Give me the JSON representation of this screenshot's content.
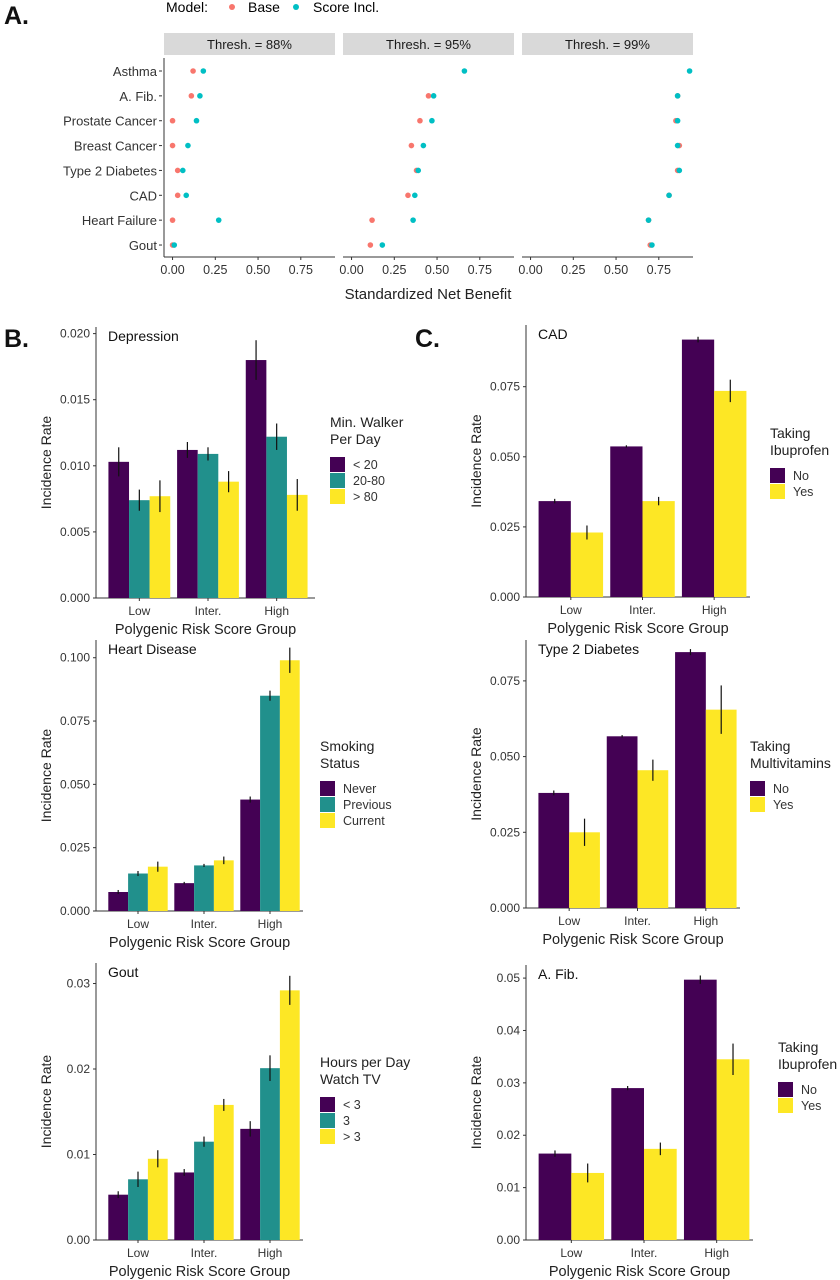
{
  "panel_letters": [
    "A.",
    "B.",
    "C."
  ],
  "colors": {
    "base": "#F8766D",
    "score": "#00BFC4",
    "purple": "#440154",
    "teal": "#21908C",
    "yellow": "#FDE725",
    "strip": "#D9D9D9",
    "axis": "#4D4D4D"
  },
  "chart_data": [
    {
      "id": "A",
      "type": "scatter",
      "legend_title": "Model:",
      "series_names": [
        "Base",
        "Score Incl."
      ],
      "xlabel": "Standardized Net Benefit",
      "categories": [
        "Asthma",
        "A. Fib.",
        "Prostate Cancer",
        "Breast Cancer",
        "Type 2 Diabetes",
        "CAD",
        "Heart Failure",
        "Gout"
      ],
      "xticks": [
        "0.00",
        "0.25",
        "0.50",
        "0.75"
      ],
      "xlim": [
        -0.05,
        0.95
      ],
      "facets": [
        {
          "label": "Thresh. = 88%",
          "base": [
            0.12,
            0.11,
            0.0,
            0.0,
            0.03,
            0.03,
            0.0,
            0.0
          ],
          "score": [
            0.18,
            0.16,
            0.14,
            0.09,
            0.06,
            0.08,
            0.27,
            0.01
          ]
        },
        {
          "label": "Thresh. = 95%",
          "base": [
            null,
            0.45,
            0.4,
            0.35,
            0.38,
            0.33,
            0.12,
            0.11
          ],
          "score": [
            0.66,
            0.48,
            0.47,
            0.42,
            0.39,
            0.37,
            0.36,
            0.18
          ]
        },
        {
          "label": "Thresh. = 99%",
          "base": [
            null,
            0.86,
            0.85,
            0.87,
            0.86,
            0.81,
            0.69,
            0.7
          ],
          "score": [
            0.93,
            0.86,
            0.86,
            0.86,
            0.87,
            0.81,
            0.69,
            0.71
          ]
        }
      ]
    },
    {
      "id": "B1",
      "type": "bar",
      "title": "Depression",
      "xlabel": "Polygenic Risk Score Group",
      "ylabel": "Incidence Rate",
      "categories": [
        "Low",
        "Inter.",
        "High"
      ],
      "ylim": [
        0,
        0.0205
      ],
      "yticks": [
        "0.000",
        "0.005",
        "0.010",
        "0.015",
        "0.020"
      ],
      "legend_title": [
        "Min. Walker",
        "Per Day"
      ],
      "series": [
        {
          "name": "< 20",
          "values": [
            0.0103,
            0.0112,
            0.018
          ],
          "err": [
            0.0011,
            0.0006,
            0.0015
          ]
        },
        {
          "name": "20-80",
          "values": [
            0.0074,
            0.0109,
            0.0122
          ],
          "err": [
            0.0008,
            0.0005,
            0.001
          ]
        },
        {
          "name": "> 80",
          "values": [
            0.0077,
            0.0088,
            0.0078
          ],
          "err": [
            0.0012,
            0.0008,
            0.0012
          ]
        }
      ]
    },
    {
      "id": "B2",
      "type": "bar",
      "title": "Heart Disease",
      "xlabel": "Polygenic Risk Score Group",
      "ylabel": "Incidence Rate",
      "categories": [
        "Low",
        "Inter.",
        "High"
      ],
      "ylim": [
        0,
        0.107
      ],
      "yticks": [
        "0.000",
        "0.025",
        "0.050",
        "0.075",
        "0.100"
      ],
      "legend_title": [
        "Smoking",
        "Status"
      ],
      "series": [
        {
          "name": "Never",
          "values": [
            0.0075,
            0.011,
            0.044
          ],
          "err": [
            0.0008,
            0.0005,
            0.0012
          ]
        },
        {
          "name": "Previous",
          "values": [
            0.0148,
            0.018,
            0.085
          ],
          "err": [
            0.001,
            0.0006,
            0.002
          ]
        },
        {
          "name": "Current",
          "values": [
            0.0175,
            0.02,
            0.099
          ],
          "err": [
            0.002,
            0.0015,
            0.005
          ]
        }
      ]
    },
    {
      "id": "B3",
      "type": "bar",
      "title": "Gout",
      "xlabel": "Polygenic Risk Score Group",
      "ylabel": "Incidence Rate",
      "categories": [
        "Low",
        "Inter.",
        "High"
      ],
      "ylim": [
        0,
        0.0324
      ],
      "yticks": [
        "0.00",
        "0.01",
        "0.02",
        "0.03"
      ],
      "legend_title": [
        "Hours per Day",
        "Watch TV"
      ],
      "series": [
        {
          "name": "< 3",
          "values": [
            0.0053,
            0.0079,
            0.013
          ],
          "err": [
            0.0004,
            0.0004,
            0.0009
          ]
        },
        {
          "name": "3",
          "values": [
            0.0071,
            0.0115,
            0.0201
          ],
          "err": [
            0.0009,
            0.0006,
            0.0015
          ]
        },
        {
          "name": "> 3",
          "values": [
            0.0095,
            0.0158,
            0.0292
          ],
          "err": [
            0.001,
            0.0007,
            0.0017
          ]
        }
      ]
    },
    {
      "id": "C1",
      "type": "bar",
      "title": "CAD",
      "xlabel": "Polygenic Risk Score Group",
      "ylabel": "Incidence Rate",
      "categories": [
        "Low",
        "Inter.",
        "High"
      ],
      "ylim": [
        0,
        0.097
      ],
      "yticks": [
        "0.000",
        "0.025",
        "0.050",
        "0.075"
      ],
      "legend_title": [
        "Taking",
        "Ibuprofen"
      ],
      "series": [
        {
          "name": "No",
          "values": [
            0.0342,
            0.0537,
            0.0918
          ],
          "err": [
            0.0008,
            0.0004,
            0.001
          ]
        },
        {
          "name": "Yes",
          "values": [
            0.023,
            0.0342,
            0.0735
          ],
          "err": [
            0.0025,
            0.0015,
            0.004
          ]
        }
      ]
    },
    {
      "id": "C2",
      "type": "bar",
      "title": "Type 2 Diabetes",
      "xlabel": "Polygenic Risk Score Group",
      "ylabel": "Incidence Rate",
      "categories": [
        "Low",
        "Inter.",
        "High"
      ],
      "ylim": [
        0,
        0.0885
      ],
      "yticks": [
        "0.000",
        "0.025",
        "0.050",
        "0.075"
      ],
      "legend_title": [
        "Taking",
        "Multivitamins"
      ],
      "series": [
        {
          "name": "No",
          "values": [
            0.038,
            0.0567,
            0.0845
          ],
          "err": [
            0.0008,
            0.0004,
            0.001
          ]
        },
        {
          "name": "Yes",
          "values": [
            0.025,
            0.0455,
            0.0655
          ],
          "err": [
            0.0045,
            0.0035,
            0.008
          ]
        }
      ]
    },
    {
      "id": "C3",
      "type": "bar",
      "title": "A. Fib.",
      "xlabel": "Polygenic Risk Score Group",
      "ylabel": "Incidence Rate",
      "categories": [
        "Low",
        "Inter.",
        "High"
      ],
      "ylim": [
        0,
        0.0525
      ],
      "yticks": [
        "0.00",
        "0.01",
        "0.02",
        "0.03",
        "0.04",
        "0.05"
      ],
      "legend_title": [
        "Taking",
        "Ibuprofen"
      ],
      "series": [
        {
          "name": "No",
          "values": [
            0.0165,
            0.029,
            0.0497
          ],
          "err": [
            0.0006,
            0.0004,
            0.0008
          ]
        },
        {
          "name": "Yes",
          "values": [
            0.0128,
            0.0174,
            0.0345
          ],
          "err": [
            0.0018,
            0.0012,
            0.003
          ]
        }
      ]
    }
  ]
}
